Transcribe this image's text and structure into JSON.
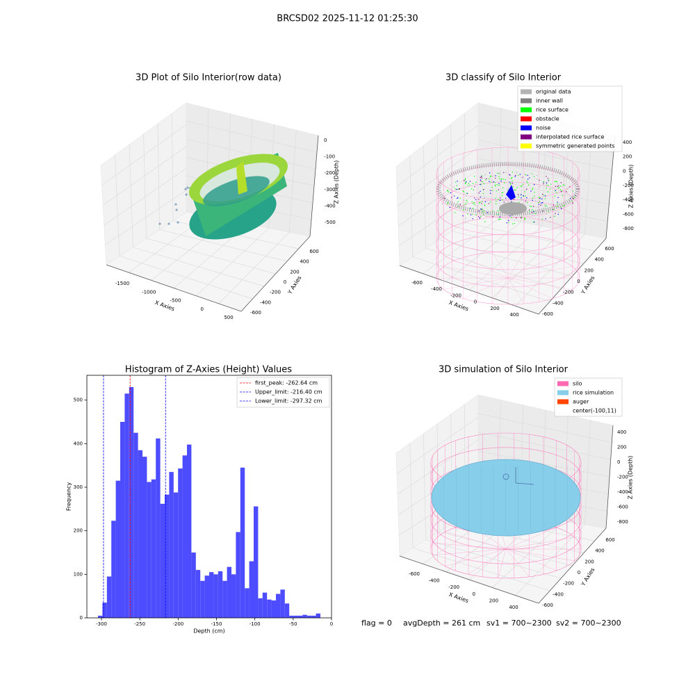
{
  "title": "BRCSD02 2025-11-12 01:25:30",
  "footer": [
    "flag = 0",
    "avgDepth = 261 cm",
    "sv1 = 700~2300",
    "sv2 = 700~2300"
  ],
  "chart_data": [
    {
      "type": "scatter3d",
      "title": "3D Plot of Silo Interior(row data)",
      "xlabel": "X Axies",
      "ylabel": "Y Axies",
      "zlabel": "Z Axies (Depth)",
      "xticks": [
        -1500,
        -1000,
        -500,
        0,
        500
      ],
      "yticks": [
        -600,
        -400,
        -200,
        0,
        200,
        400,
        600
      ],
      "zticks": [
        0,
        -100,
        -200,
        -300,
        -400,
        -500
      ]
    },
    {
      "type": "scatter3d",
      "title": "3D classify of Silo Interior",
      "xlabel": "X Axies",
      "ylabel": "Y Axies",
      "zlabel": "Z Axies (Depth)",
      "xticks": [
        -600,
        -400,
        -200,
        0,
        200,
        400
      ],
      "yticks": [
        -600,
        -400,
        -200,
        0,
        200,
        400,
        600
      ],
      "zticks": [
        400,
        200,
        0,
        -200,
        -400,
        -600,
        -800
      ],
      "legend": [
        {
          "name": "original data",
          "color": "#b3b3b3"
        },
        {
          "name": "inner wall",
          "color": "#808080"
        },
        {
          "name": "rice surface",
          "color": "#00ff00"
        },
        {
          "name": "obstacle",
          "color": "#ff0000"
        },
        {
          "name": "noise",
          "color": "#0000ff"
        },
        {
          "name": "interpolated rice surface",
          "color": "#800080"
        },
        {
          "name": "symmetric generated points",
          "color": "#ffff00"
        }
      ]
    },
    {
      "type": "histogram",
      "title": "Histogram of Z-Axies (Height) Values",
      "xlabel": "Depth (cm)",
      "ylabel": "Frequency",
      "color": "#4d4dff",
      "bins": [
        -304.5,
        -298.7,
        -292.9,
        -287.1,
        -281.3,
        -275.5,
        -269.7,
        -263.9,
        -258.1,
        -252.3,
        -246.5,
        -240.7,
        -234.9,
        -229.1,
        -223.3,
        -217.5,
        -211.7,
        -205.9,
        -200.1,
        -194.3,
        -188.5,
        -182.7,
        -176.9,
        -171.1,
        -165.3,
        -159.5,
        -153.7,
        -147.9,
        -142.1,
        -136.3,
        -130.5,
        -124.7,
        -118.9,
        -113.1,
        -107.3,
        -101.5,
        -95.7,
        -89.9,
        -84.1,
        -78.3,
        -72.5,
        -66.7,
        -60.9,
        -55.1,
        -49.3,
        -43.5,
        -37.7,
        -31.9,
        -26.1,
        -20.3,
        -14.5
      ],
      "values": [
        5,
        35,
        95,
        223,
        315,
        450,
        515,
        530,
        425,
        385,
        370,
        312,
        318,
        412,
        262,
        283,
        335,
        288,
        343,
        373,
        398,
        150,
        110,
        85,
        97,
        105,
        100,
        107,
        85,
        117,
        100,
        197,
        345,
        68,
        130,
        256,
        45,
        58,
        42,
        40,
        55,
        65,
        33,
        5,
        5,
        5,
        7,
        5,
        5,
        10
      ],
      "xlim": [
        -319,
        0
      ],
      "ylim": [
        0,
        557
      ],
      "xticks": [
        -300,
        -250,
        -200,
        -150,
        -100,
        -50,
        0
      ],
      "yticks": [
        0,
        100,
        200,
        300,
        400,
        500
      ],
      "vlines": [
        {
          "name": "first_peak: -262.64 cm",
          "value": -262.64,
          "color": "#ff0000"
        },
        {
          "name": "Upper_limit: -216.40 cm",
          "value": -216.4,
          "color": "#0000ff"
        },
        {
          "name": "Lower_limit: -297.32 cm",
          "value": -297.32,
          "color": "#0000ff"
        }
      ]
    },
    {
      "type": "scatter3d",
      "title": "3D simulation of Silo Interior",
      "xlabel": "X Axies",
      "ylabel": "Y Axies",
      "zlabel": "Z Axies (Depth)",
      "xticks": [
        -600,
        -400,
        -200,
        0,
        200,
        400
      ],
      "yticks": [
        -600,
        -400,
        -200,
        0,
        200,
        400,
        600
      ],
      "zticks": [
        400,
        200,
        0,
        -200,
        -400,
        -600,
        -800
      ],
      "legend": [
        {
          "name": "silo",
          "color": "#ff69b4"
        },
        {
          "name": "rice simulation",
          "color": "#87ceeb"
        },
        {
          "name": "auger",
          "color": "#ff4500"
        },
        {
          "name": "center(-100,11)"
        }
      ]
    }
  ]
}
